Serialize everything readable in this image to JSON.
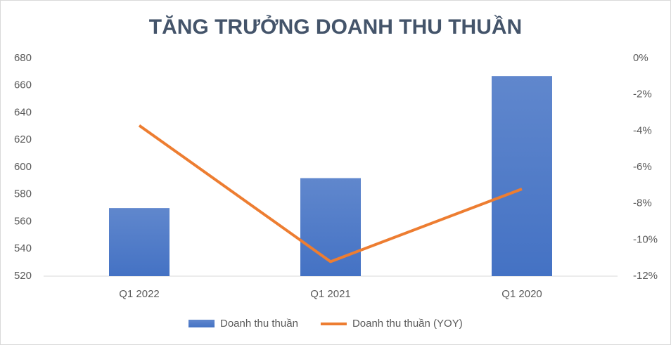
{
  "chart_data": {
    "type": "bar-line",
    "title": "TĂNG TRƯỞNG DOANH THU THUẦN",
    "categories": [
      "Q1 2022",
      "Q1 2021",
      "Q1 2020"
    ],
    "series": [
      {
        "name": "Doanh thu thuần",
        "type": "bar",
        "color": "#4472c4",
        "values": [
          570,
          592,
          667
        ]
      },
      {
        "name": "Doanh thu thuần (YOY)",
        "type": "line",
        "color": "#ed7d31",
        "axis": "y2",
        "values": [
          -3.7,
          -11.2,
          -7.2
        ]
      }
    ],
    "ylim": [
      520,
      680
    ],
    "yticks": [
      520,
      540,
      560,
      580,
      600,
      620,
      640,
      660,
      680
    ],
    "y2lim": [
      -12,
      0
    ],
    "y2ticks": [
      {
        "value": -12,
        "label": "-12%"
      },
      {
        "value": -10,
        "label": "-10%"
      },
      {
        "value": -8,
        "label": "-8%"
      },
      {
        "value": -6,
        "label": "-6%"
      },
      {
        "value": -4,
        "label": "-4%"
      },
      {
        "value": -2,
        "label": "-2%"
      },
      {
        "value": 0,
        "label": "0%"
      }
    ],
    "grid": false,
    "legend": "bottom"
  }
}
